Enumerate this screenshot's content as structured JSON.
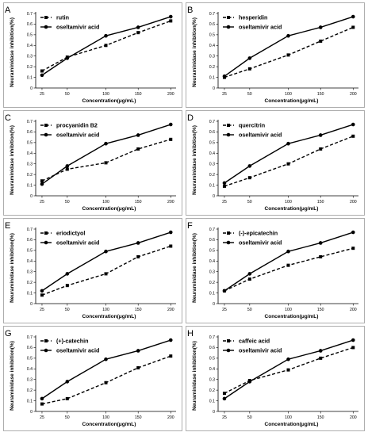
{
  "chart_data": [
    {
      "panel": "A",
      "type": "line",
      "x": [
        "25",
        "50",
        "100",
        "150",
        "200"
      ],
      "xlabel": "Concentration(μg/mL)",
      "ylabel": "Neuraminidase inhibition(%)",
      "ylim": [
        0,
        0.7
      ],
      "yticks": [
        "0",
        "0.1",
        "0.2",
        "0.3",
        "0.4",
        "0.5",
        "0.6",
        "0.7"
      ],
      "legend_position": "top-left",
      "series": [
        {
          "name": "rutin",
          "values": [
            0.16,
            0.29,
            0.4,
            0.52,
            0.63
          ]
        },
        {
          "name": "oseltamivir acid",
          "values": [
            0.12,
            0.28,
            0.49,
            0.57,
            0.67
          ]
        }
      ]
    },
    {
      "panel": "B",
      "type": "line",
      "x": [
        "25",
        "50",
        "100",
        "150",
        "200"
      ],
      "xlabel": "Concentration(μg/mL)",
      "ylabel": "Neuraminidase inhibition(%)",
      "ylim": [
        0,
        0.7
      ],
      "yticks": [
        "0",
        "0.1",
        "0.2",
        "0.3",
        "0.4",
        "0.5",
        "0.6",
        "0.7"
      ],
      "legend_position": "top-left",
      "series": [
        {
          "name": "hesperidin",
          "values": [
            0.1,
            0.18,
            0.31,
            0.44,
            0.57
          ]
        },
        {
          "name": "oseltamivir acid",
          "values": [
            0.11,
            0.28,
            0.49,
            0.57,
            0.67
          ]
        }
      ]
    },
    {
      "panel": "C",
      "type": "line",
      "x": [
        "25",
        "50",
        "100",
        "150",
        "200"
      ],
      "xlabel": "Concentration(μg/mL)",
      "ylabel": "Neuraminidase inhibition(%)",
      "ylim": [
        0,
        0.7
      ],
      "yticks": [
        "0",
        "0.1",
        "0.2",
        "0.3",
        "0.4",
        "0.5",
        "0.6",
        "0.7"
      ],
      "legend_position": "top-left",
      "series": [
        {
          "name": "procyanidin B2",
          "values": [
            0.14,
            0.25,
            0.31,
            0.44,
            0.53
          ]
        },
        {
          "name": "oseltamivir acid",
          "values": [
            0.11,
            0.28,
            0.49,
            0.57,
            0.67
          ]
        }
      ]
    },
    {
      "panel": "D",
      "type": "line",
      "x": [
        "25",
        "50",
        "100",
        "150",
        "200"
      ],
      "xlabel": "Concentration(μg/mL)",
      "ylabel": "Neuraminidase inhibition(%)",
      "ylim": [
        0,
        0.7
      ],
      "yticks": [
        "0",
        "0.1",
        "0.2",
        "0.3",
        "0.4",
        "0.5",
        "0.6",
        "0.7"
      ],
      "legend_position": "top-left",
      "series": [
        {
          "name": "quercitrin",
          "values": [
            0.09,
            0.17,
            0.3,
            0.44,
            0.56
          ]
        },
        {
          "name": "oseltamivir acid",
          "values": [
            0.12,
            0.28,
            0.49,
            0.57,
            0.67
          ]
        }
      ]
    },
    {
      "panel": "E",
      "type": "line",
      "x": [
        "25",
        "50",
        "100",
        "150",
        "200"
      ],
      "xlabel": "Concentration(μg/mL)",
      "ylabel": "Neuraminidase inhibition(%)",
      "ylim": [
        0,
        0.7
      ],
      "yticks": [
        "0",
        "0.1",
        "0.2",
        "0.3",
        "0.4",
        "0.5",
        "0.6",
        "0.7"
      ],
      "legend_position": "top-left",
      "series": [
        {
          "name": "eriodictyol",
          "values": [
            0.08,
            0.17,
            0.28,
            0.44,
            0.54
          ]
        },
        {
          "name": "oseltamivir acid",
          "values": [
            0.12,
            0.28,
            0.49,
            0.57,
            0.67
          ]
        }
      ]
    },
    {
      "panel": "F",
      "type": "line",
      "x": [
        "25",
        "50",
        "100",
        "150",
        "200"
      ],
      "xlabel": "Concentration(μg/mL)",
      "ylabel": "Neuraminidase inhibition(%)",
      "ylim": [
        0,
        0.7
      ],
      "yticks": [
        "0",
        "0.1",
        "0.2",
        "0.3",
        "0.4",
        "0.5",
        "0.6",
        "0.7"
      ],
      "legend_position": "top-left",
      "series": [
        {
          "name": "(-)-epicatechin",
          "values": [
            0.12,
            0.23,
            0.36,
            0.44,
            0.52
          ]
        },
        {
          "name": "oseltamivir acid",
          "values": [
            0.12,
            0.28,
            0.49,
            0.57,
            0.67
          ]
        }
      ]
    },
    {
      "panel": "G",
      "type": "line",
      "x": [
        "25",
        "50",
        "100",
        "150",
        "200"
      ],
      "xlabel": "Concentration(μg/mL)",
      "ylabel": "Neuraminidase inhibition(%)",
      "ylim": [
        0,
        0.7
      ],
      "yticks": [
        "0",
        "0.1",
        "0.2",
        "0.3",
        "0.4",
        "0.5",
        "0.6",
        "0.7"
      ],
      "legend_position": "top-left",
      "series": [
        {
          "name": "(+)-catechin",
          "values": [
            0.07,
            0.12,
            0.27,
            0.41,
            0.52
          ]
        },
        {
          "name": "oseltamivir acid",
          "values": [
            0.12,
            0.28,
            0.49,
            0.57,
            0.67
          ]
        }
      ]
    },
    {
      "panel": "H",
      "type": "line",
      "x": [
        "25",
        "50",
        "100",
        "150",
        "200"
      ],
      "xlabel": "Concentration(μg/mL)",
      "ylabel": "Neuraminidase inhibition(%)",
      "ylim": [
        0,
        0.7
      ],
      "yticks": [
        "0",
        "0.1",
        "0.2",
        "0.3",
        "0.4",
        "0.5",
        "0.6",
        "0.7"
      ],
      "legend_position": "top-left",
      "series": [
        {
          "name": "caffeic acid",
          "values": [
            0.17,
            0.29,
            0.39,
            0.5,
            0.6
          ]
        },
        {
          "name": "oseltamivir acid",
          "values": [
            0.12,
            0.28,
            0.49,
            0.57,
            0.67
          ]
        }
      ]
    }
  ]
}
